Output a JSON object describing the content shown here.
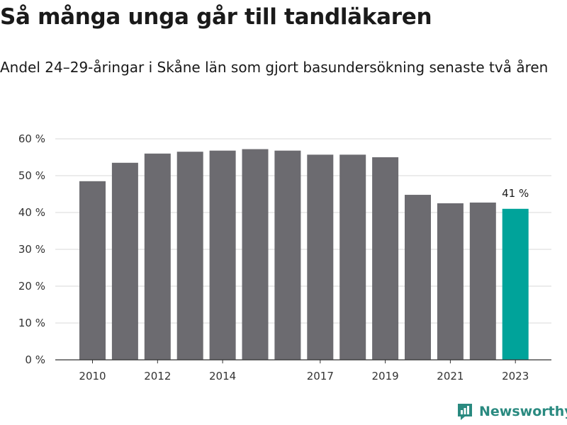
{
  "chart_data": {
    "type": "bar",
    "title": "Så många unga går till tandläkaren",
    "subtitle": "Andel 24–29-åringar i Skåne län som gjort basundersökning senaste två åren",
    "categories": [
      "2010",
      "2011",
      "2012",
      "2013",
      "2014",
      "2015",
      "2016",
      "2017",
      "2018",
      "2019",
      "2020",
      "2021",
      "2022",
      "2023"
    ],
    "x_tick_labels": [
      "2010",
      "",
      "2012",
      "",
      "2014",
      "",
      "",
      "2017",
      "",
      "2019",
      "",
      "2021",
      "",
      "2023"
    ],
    "values": [
      48.5,
      53.5,
      56.0,
      56.5,
      56.8,
      57.2,
      56.8,
      55.7,
      55.7,
      55.0,
      44.8,
      42.5,
      42.7,
      41.0
    ],
    "ylim": [
      0,
      60
    ],
    "y_ticks": [
      0,
      10,
      20,
      30,
      40,
      50,
      60
    ],
    "y_tick_suffix": " %",
    "grid": true,
    "bar_color": "#6c6b70",
    "highlight_color": "#00a39a",
    "highlight_index": 13,
    "highlight_label": "41 %"
  },
  "branding": {
    "name": "Newsworthy",
    "color": "#2a8a80"
  }
}
